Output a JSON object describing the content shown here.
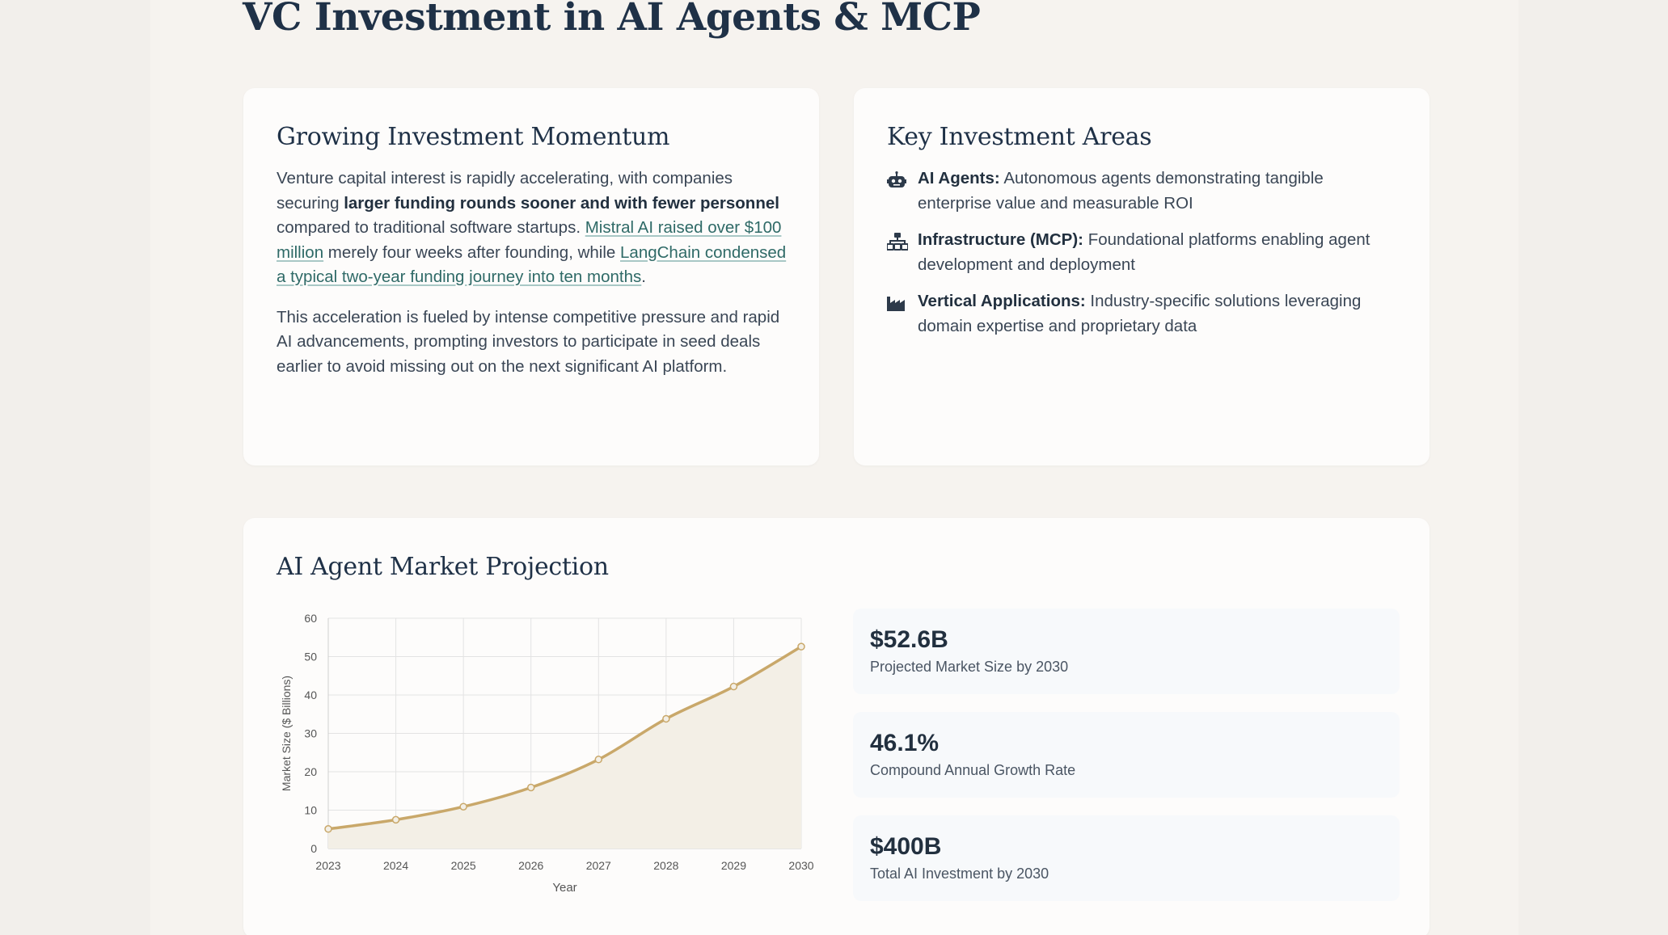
{
  "header": {
    "title": "VC Investment in AI Agents & MCP"
  },
  "momentum": {
    "heading": "Growing Investment Momentum",
    "p1_a": "Venture capital interest is rapidly accelerating, with companies securing ",
    "p1_bold": "larger funding rounds sooner and with fewer personnel",
    "p1_b": " compared to traditional software startups. ",
    "p1_link1": "Mistral AI raised over $100 million",
    "p1_c": " merely four weeks after founding, while ",
    "p1_link2": "LangChain condensed a typical two-year funding journey into ten months",
    "p1_d": ".",
    "p2": "This acceleration is fueled by intense competitive pressure and rapid AI advancements, prompting investors to participate in seed deals earlier to avoid missing out on the next significant AI platform."
  },
  "areas": {
    "heading": "Key Investment Areas",
    "items": [
      {
        "icon": "robot-icon",
        "title": "AI Agents:",
        "text": " Autonomous agents demonstrating tangible enterprise value and measurable ROI"
      },
      {
        "icon": "sitemap-icon",
        "title": "Infrastructure (MCP):",
        "text": " Foundational platforms enabling agent development and deployment"
      },
      {
        "icon": "industry-icon",
        "title": "Vertical Applications:",
        "text": " Industry-specific solutions leveraging domain expertise and proprietary data"
      }
    ]
  },
  "projection": {
    "heading": "AI Agent Market Projection",
    "stats": [
      {
        "value": "$52.6B",
        "label": "Projected Market Size by 2030"
      },
      {
        "value": "46.1%",
        "label": "Compound Annual Growth Rate"
      },
      {
        "value": "$400B",
        "label": "Total AI Investment by 2030"
      }
    ]
  },
  "chart_data": {
    "type": "line",
    "x": [
      "2023",
      "2024",
      "2025",
      "2026",
      "2027",
      "2028",
      "2029",
      "2030"
    ],
    "series": [
      {
        "values": [
          5.1,
          7.5,
          10.9,
          15.9,
          23.2,
          33.8,
          42.2,
          52.6
        ]
      }
    ],
    "xlabel": "Year",
    "ylabel": "Market Size ($ Billions)",
    "ylim": [
      0,
      60
    ],
    "yticks": [
      0,
      10,
      20,
      30,
      40,
      50,
      60
    ],
    "grid": true,
    "fill": true,
    "line_color": "#c9a86a",
    "fill_color": "#f3efe6"
  }
}
